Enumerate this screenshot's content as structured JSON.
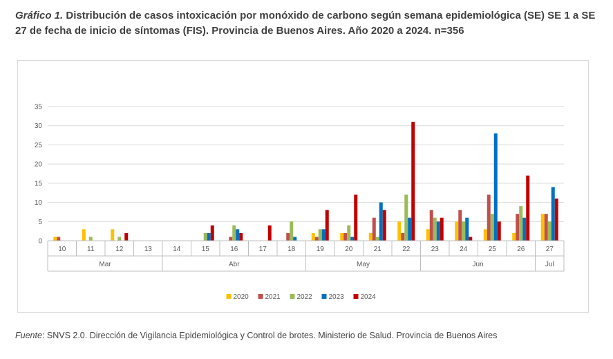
{
  "title": {
    "lead": "Gráfico 1.",
    "text": "Distribución de casos intoxicación por monóxido de carbono según semana epidemiológica (SE) SE 1 a SE 27 de fecha de inicio de síntomas (FIS). Provincia de Buenos Aires. Año 2020 a 2024. n=356"
  },
  "source": {
    "label": "Fuente",
    "text": ": SNVS 2.0. Dirección de Vigilancia Epidemiológica y Control de brotes. Ministerio de Salud. Provincia de Buenos Aires"
  },
  "chart_data": {
    "type": "bar",
    "categories": [
      "10",
      "11",
      "12",
      "13",
      "14",
      "15",
      "16",
      "17",
      "18",
      "19",
      "20",
      "21",
      "22",
      "23",
      "24",
      "25",
      "26",
      "27"
    ],
    "groups": [
      {
        "label": "Mar",
        "from": 0,
        "to": 3
      },
      {
        "label": "Abr",
        "from": 4,
        "to": 8
      },
      {
        "label": "May",
        "from": 9,
        "to": 12
      },
      {
        "label": "Jun",
        "from": 13,
        "to": 16
      },
      {
        "label": "Jul",
        "from": 17,
        "to": 17
      }
    ],
    "series": [
      {
        "name": "2020",
        "color": "#FFC000",
        "values": [
          1,
          3,
          3,
          0,
          0,
          0,
          0,
          0,
          0,
          2,
          2,
          2,
          5,
          3,
          5,
          3,
          2,
          7
        ]
      },
      {
        "name": "2021",
        "color": "#C0504D",
        "values": [
          1,
          0,
          0,
          0,
          0,
          0,
          1,
          0,
          2,
          1,
          2,
          6,
          2,
          8,
          8,
          12,
          7,
          7
        ]
      },
      {
        "name": "2022",
        "color": "#9BBB59",
        "values": [
          0,
          1,
          1,
          0,
          0,
          2,
          4,
          0,
          5,
          3,
          4,
          1,
          12,
          6,
          5,
          7,
          9,
          5
        ]
      },
      {
        "name": "2023",
        "color": "#0070C0",
        "values": [
          0,
          0,
          0,
          0,
          0,
          2,
          3,
          0,
          1,
          3,
          1,
          10,
          6,
          5,
          6,
          28,
          6,
          14
        ]
      },
      {
        "name": "2024",
        "color": "#C00000",
        "values": [
          0,
          0,
          2,
          0,
          0,
          4,
          2,
          4,
          0,
          8,
          12,
          8,
          31,
          6,
          1,
          5,
          17,
          11
        ]
      }
    ],
    "yticks": [
      0,
      5,
      10,
      15,
      20,
      25,
      30,
      35
    ],
    "ylim": [
      0,
      35
    ],
    "grid": true,
    "legend_position": "bottom"
  }
}
